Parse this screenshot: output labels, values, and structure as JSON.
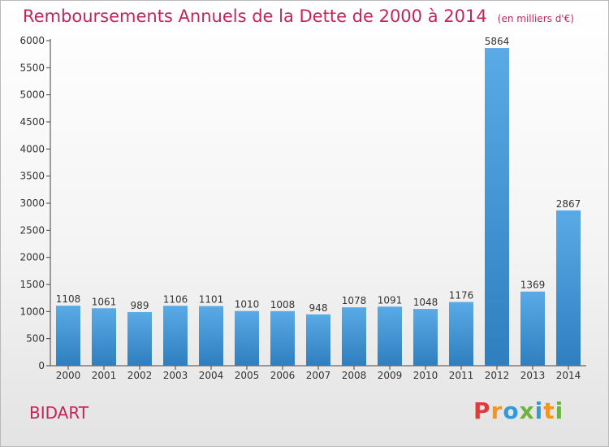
{
  "title": "Remboursements Annuels de la Dette de 2000 à 2014",
  "unit_note": "(en milliers d'€)",
  "commune": "BIDART",
  "logo": {
    "text": "Proxiti",
    "colors": [
      "#e03a3e",
      "#f7941d",
      "#2f9bd8",
      "#6cb33f",
      "#2f9bd8",
      "#f7941d",
      "#6cb33f"
    ]
  },
  "colors": {
    "title": "#c3245a",
    "bar_top": "#5aaae6",
    "bar_bottom": "#2f7fc0",
    "axis": "#444444"
  },
  "chart_data": {
    "type": "bar",
    "categories": [
      "2000",
      "2001",
      "2002",
      "2003",
      "2004",
      "2005",
      "2006",
      "2007",
      "2008",
      "2009",
      "2010",
      "2011",
      "2012",
      "2013",
      "2014"
    ],
    "values": [
      1108,
      1061,
      989,
      1106,
      1101,
      1010,
      1008,
      948,
      1078,
      1091,
      1048,
      1176,
      5864,
      1369,
      2867
    ],
    "ylim": [
      0,
      6000
    ],
    "yticks": [
      0,
      500,
      1000,
      1500,
      2000,
      2500,
      3000,
      3500,
      4000,
      4500,
      5000,
      5500,
      6000
    ],
    "grid": false,
    "data_labels": true
  }
}
